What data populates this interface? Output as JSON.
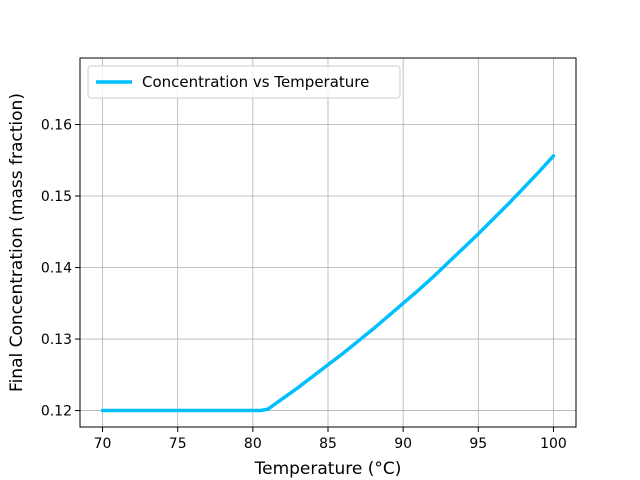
{
  "chart_data": {
    "type": "line",
    "xlabel": "Temperature (°C)",
    "ylabel": "Final Concentration (mass fraction)",
    "xlim": [
      68.5,
      101.5
    ],
    "ylim": [
      0.1177,
      0.1693
    ],
    "x_ticks": [
      70,
      75,
      80,
      85,
      90,
      95,
      100
    ],
    "y_ticks": [
      0.12,
      0.13,
      0.14,
      0.15,
      0.16
    ],
    "x_tick_labels": [
      "70",
      "75",
      "80",
      "85",
      "90",
      "95",
      "100"
    ],
    "y_tick_labels": [
      "0.12",
      "0.13",
      "0.14",
      "0.15",
      "0.16"
    ],
    "grid": true,
    "legend_position": "top-left",
    "series": [
      {
        "name": "Concentration vs Temperature",
        "color": "#00bfff",
        "x": [
          70,
          71,
          72,
          73,
          74,
          75,
          76,
          77,
          78,
          79,
          80,
          80.5,
          81,
          82,
          83,
          84,
          85,
          86,
          87,
          88,
          89,
          90,
          91,
          92,
          93,
          94,
          95,
          96,
          97,
          98,
          99,
          100
        ],
        "y": [
          0.12,
          0.12,
          0.12,
          0.12,
          0.12,
          0.12,
          0.12,
          0.12,
          0.12,
          0.12,
          0.12,
          0.12,
          0.1202,
          0.1217,
          0.1232,
          0.1248,
          0.1264,
          0.128,
          0.1297,
          0.1314,
          0.1332,
          0.135,
          0.1368,
          0.1387,
          0.1407,
          0.1427,
          0.1447,
          0.1468,
          0.1489,
          0.1511,
          0.1533,
          0.1556
        ]
      }
    ]
  }
}
